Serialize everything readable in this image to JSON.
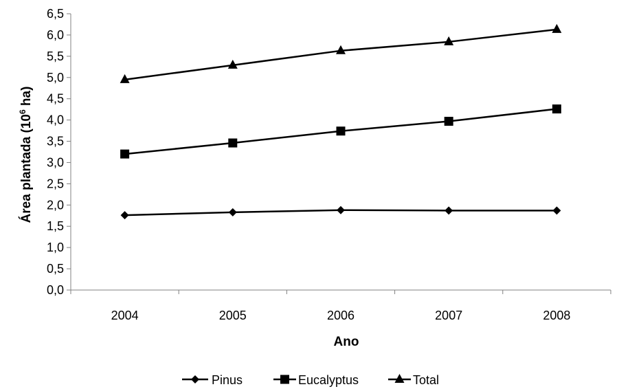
{
  "chart_data": {
    "type": "line",
    "title": "",
    "xlabel": "Ano",
    "ylabel_main": "Área plantada (10",
    "ylabel_sup": "6",
    "ylabel_end": " ha)",
    "categories": [
      "2004",
      "2005",
      "2006",
      "2007",
      "2008"
    ],
    "ylim": [
      0,
      6.5
    ],
    "yticks": [
      "0,0",
      "0,5",
      "1,0",
      "1,5",
      "2,0",
      "2,5",
      "3,0",
      "3,5",
      "4,0",
      "4,5",
      "5,0",
      "5,5",
      "6,0",
      "6,5"
    ],
    "ytick_values": [
      0,
      0.5,
      1,
      1.5,
      2,
      2.5,
      3,
      3.5,
      4,
      4.5,
      5,
      5.5,
      6,
      6.5
    ],
    "grid": false,
    "legend_position": "bottom",
    "series": [
      {
        "name": "Pinus",
        "marker": "diamond",
        "values": [
          1.76,
          1.83,
          1.88,
          1.87,
          1.87
        ]
      },
      {
        "name": "Eucalyptus",
        "marker": "square",
        "values": [
          3.2,
          3.46,
          3.74,
          3.97,
          4.26
        ]
      },
      {
        "name": "Total",
        "marker": "triangle",
        "values": [
          4.95,
          5.29,
          5.63,
          5.84,
          6.13
        ]
      }
    ]
  }
}
